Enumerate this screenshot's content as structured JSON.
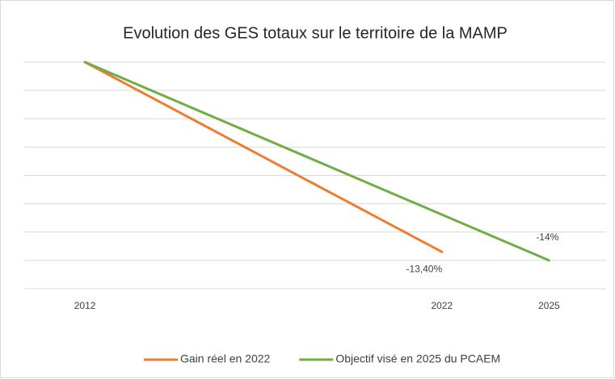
{
  "chart_data": {
    "type": "line",
    "title": "Evolution des GES totaux sur le territoire de la MAMP",
    "xlim": [
      2010.3,
      2026.6
    ],
    "xticks": [
      2012,
      2022,
      2025
    ],
    "ylim": [
      -16,
      0
    ],
    "yticks": [
      0,
      -2,
      -4,
      -6,
      -8,
      -10,
      -12,
      -14,
      -16
    ],
    "grid": true,
    "legend": "bottom",
    "series": [
      {
        "name": "Gain réel en 2022",
        "color": "#ED7D31",
        "x": [
          2012,
          2022
        ],
        "values": [
          0,
          -13.4
        ],
        "value_labels": [
          null,
          "-13,40%"
        ]
      },
      {
        "name": "Objectif visé en 2025 du PCAEM",
        "color": "#70AD47",
        "x": [
          2012,
          2025
        ],
        "values": [
          0,
          -14
        ],
        "value_labels": [
          null,
          "-14%"
        ]
      }
    ]
  }
}
